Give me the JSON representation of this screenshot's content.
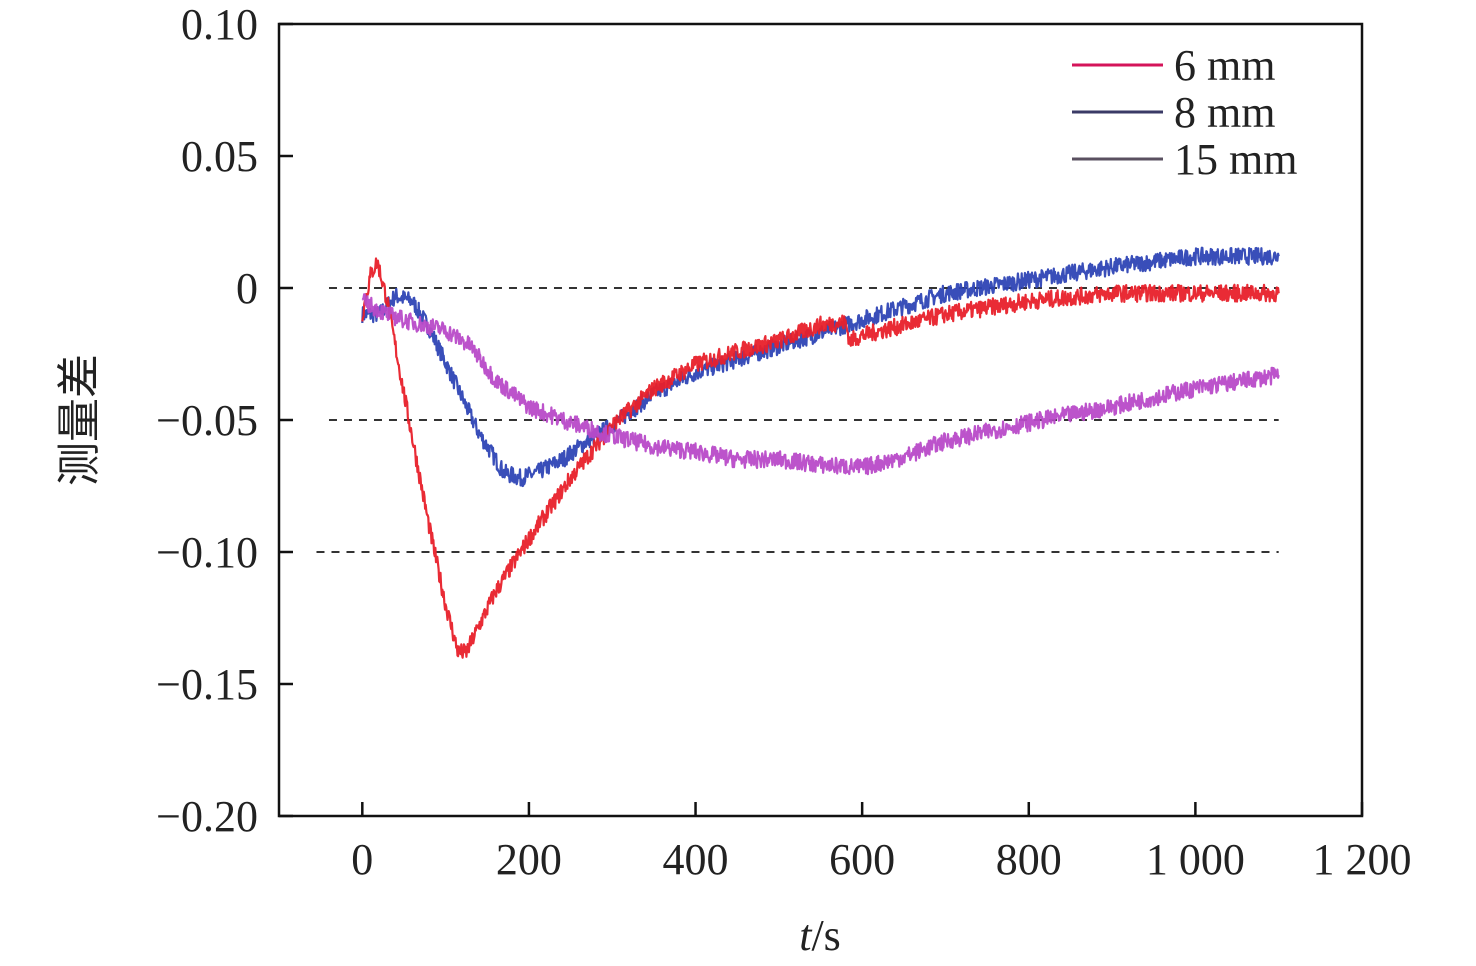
{
  "chart_data": {
    "type": "line",
    "xlabel_italic": "t",
    "xlabel_unit": "/s",
    "ylabel": "测量差",
    "xlim": [
      -100,
      1200
    ],
    "ylim": [
      -0.2,
      0.1
    ],
    "x_ticks": [
      0,
      200,
      400,
      600,
      800,
      1000,
      1200
    ],
    "x_tick_labels": [
      "0",
      "200",
      "400",
      "600",
      "800",
      "1 000",
      "1 200"
    ],
    "y_ticks": [
      0.1,
      0.05,
      0,
      -0.05,
      -0.1,
      -0.15,
      -0.2
    ],
    "y_tick_labels": [
      "0.10",
      "0.05",
      "0",
      "−0.05",
      "−0.10",
      "−0.15",
      "−0.20"
    ],
    "reference_lines": [
      {
        "y": 0,
        "x_range": [
          -40,
          1100
        ]
      },
      {
        "y": -0.05,
        "x_range": [
          -40,
          1100
        ]
      },
      {
        "y": -0.1,
        "x_range": [
          -55,
          1100
        ]
      }
    ],
    "legend_position": "top-right",
    "series": [
      {
        "name": "6 mm",
        "color": "#e8202a",
        "legend_color": "#d4145a",
        "x": [
          0,
          10,
          18,
          30,
          50,
          80,
          100,
          115,
          125,
          140,
          160,
          200,
          250,
          300,
          350,
          400,
          450,
          500,
          550,
          580,
          585,
          600,
          650,
          700,
          800,
          900,
          1000,
          1100
        ],
        "y": [
          -0.01,
          0.005,
          0.01,
          -0.005,
          -0.04,
          -0.09,
          -0.12,
          -0.138,
          -0.138,
          -0.128,
          -0.115,
          -0.095,
          -0.072,
          -0.052,
          -0.038,
          -0.029,
          -0.024,
          -0.02,
          -0.014,
          -0.013,
          -0.02,
          -0.018,
          -0.014,
          -0.01,
          -0.005,
          -0.002,
          -0.002,
          -0.002
        ]
      },
      {
        "name": "8 mm",
        "color": "#2e45b5",
        "legend_color": "#3a3a66",
        "x": [
          0,
          20,
          40,
          60,
          80,
          110,
          140,
          170,
          190,
          210,
          240,
          270,
          300,
          350,
          400,
          500,
          600,
          700,
          800,
          900,
          1000,
          1100
        ],
        "y": [
          -0.01,
          -0.01,
          -0.003,
          -0.005,
          -0.015,
          -0.035,
          -0.055,
          -0.07,
          -0.072,
          -0.07,
          -0.065,
          -0.058,
          -0.052,
          -0.04,
          -0.032,
          -0.022,
          -0.012,
          -0.002,
          0.003,
          0.008,
          0.012,
          0.012
        ]
      },
      {
        "name": "15 mm",
        "color": "#b84ac8",
        "legend_color": "#5a5060",
        "x": [
          0,
          30,
          60,
          100,
          130,
          160,
          200,
          250,
          300,
          350,
          400,
          450,
          500,
          550,
          600,
          650,
          700,
          800,
          900,
          1000,
          1100
        ],
        "y": [
          -0.005,
          -0.01,
          -0.013,
          -0.016,
          -0.022,
          -0.035,
          -0.045,
          -0.051,
          -0.056,
          -0.06,
          -0.062,
          -0.065,
          -0.065,
          -0.067,
          -0.068,
          -0.064,
          -0.058,
          -0.051,
          -0.045,
          -0.038,
          -0.033
        ]
      }
    ]
  }
}
